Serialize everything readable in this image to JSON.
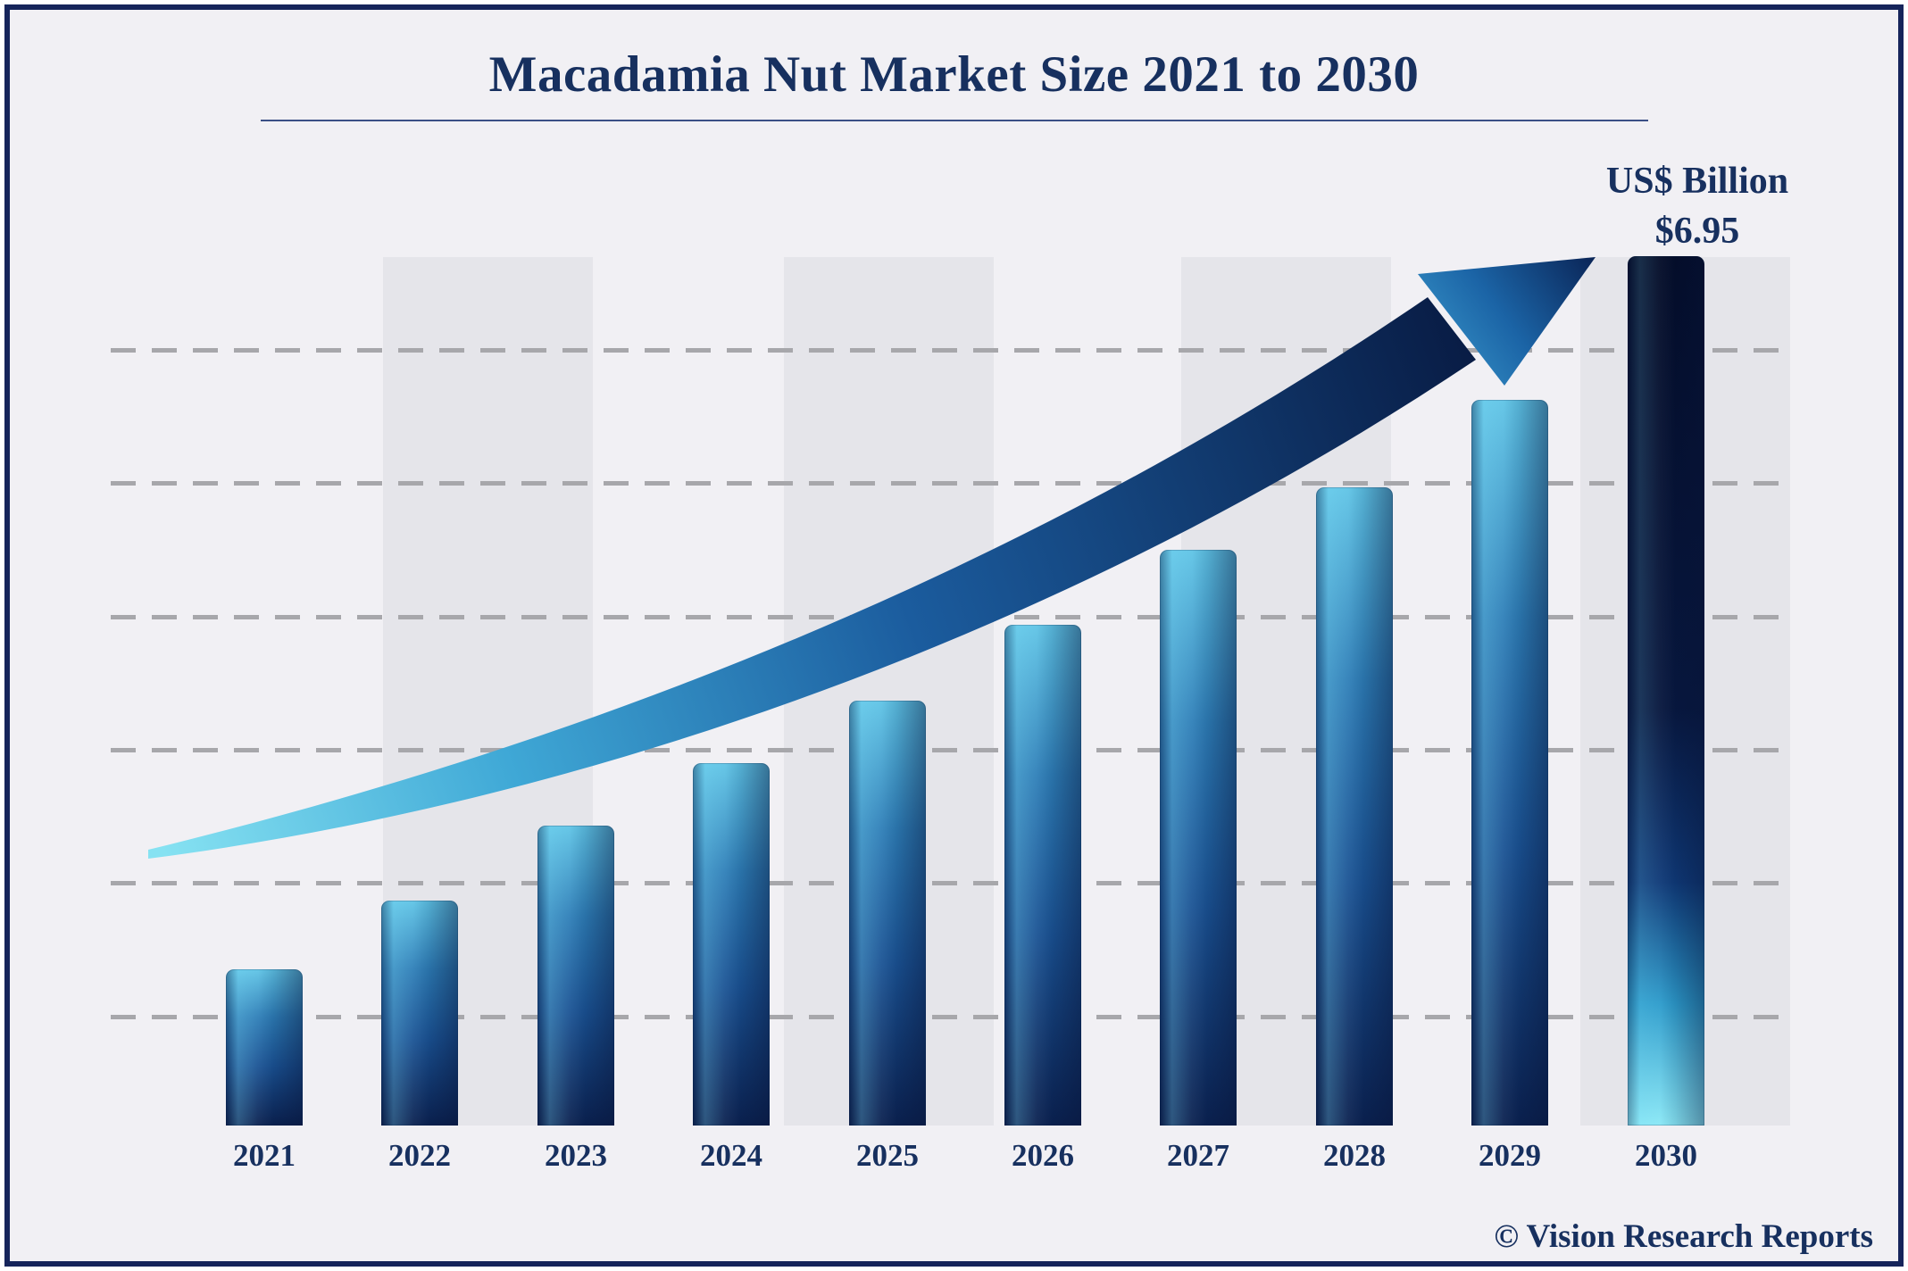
{
  "header": {
    "title": "Macadamia Nut Market Size 2021 to 2030",
    "unit_label": "US$ Billion",
    "value_label": "$6.95"
  },
  "footer": {
    "text": "© Vision Research Reports"
  },
  "chart_data": {
    "type": "bar",
    "title": "Macadamia Nut Market Size 2021 to 2030",
    "unit": "US$ Billion",
    "categories": [
      "2021",
      "2022",
      "2023",
      "2024",
      "2025",
      "2026",
      "2027",
      "2028",
      "2029",
      "2030"
    ],
    "values": [
      1.25,
      1.8,
      2.4,
      2.9,
      3.4,
      4.0,
      4.6,
      5.1,
      5.8,
      6.95
    ],
    "value_labels": {
      "2030": "$6.95"
    },
    "xlabel": "",
    "ylabel": "US$ Billion",
    "ylim": [
      0,
      7.3
    ],
    "grid": "horizontal-dashed",
    "legend": "none",
    "annotations": [
      "upward-curved-growth-arrow"
    ],
    "notes": "Only the 2030 value ($6.95) is labeled on the chart; other yearly values are estimated from bar heights."
  },
  "colors": {
    "navy_text": "#17305f",
    "bar_top": "#5fc4e6",
    "bar_bottom": "#0a2150",
    "final_bar_top": "#07173e",
    "final_bar_bottom": "#8ae8f6",
    "background": "#f1f0f4",
    "stripe": "#e5e5ea",
    "gridline": "#a7a7ab",
    "frame_border": "#16255b"
  }
}
